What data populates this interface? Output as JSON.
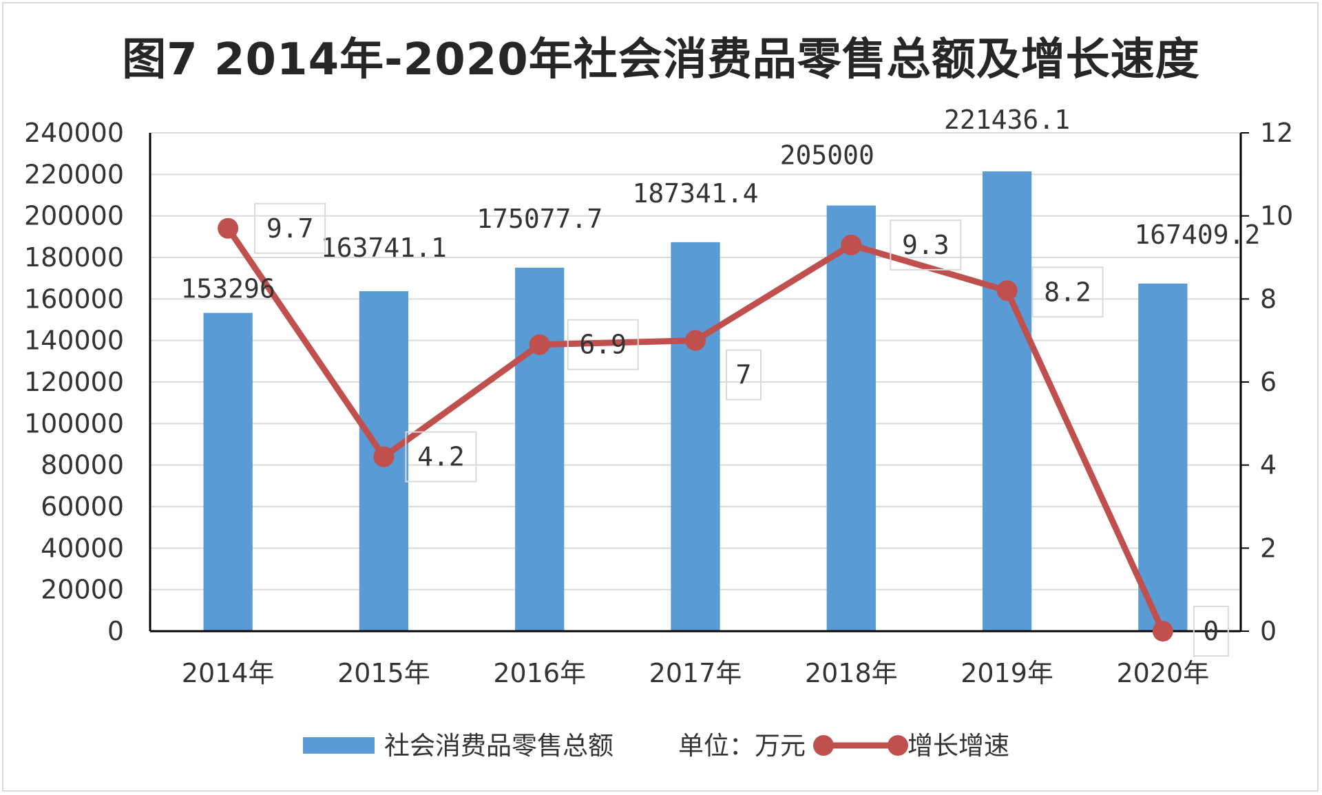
{
  "chart_data": {
    "type": "bar",
    "title": "图7  2014年-2020年社会消费品零售总额及增长速度",
    "categories": [
      "2014年",
      "2015年",
      "2016年",
      "2017年",
      "2018年",
      "2019年",
      "2020年"
    ],
    "series": [
      {
        "name": "社会消费品零售总额",
        "type": "bar",
        "axis": "left",
        "values": [
          153296,
          163741.1,
          175077.7,
          187341.4,
          205000,
          221436.1,
          167409.2
        ],
        "labels": [
          "153296",
          "163741.1",
          "175077.7",
          "187341.4",
          "205000",
          "221436.1",
          "167409.2"
        ],
        "color": "#5b9bd5"
      },
      {
        "name": "增长增速",
        "type": "line",
        "axis": "right",
        "values": [
          9.7,
          4.2,
          6.9,
          7,
          9.3,
          8.2,
          0
        ],
        "labels": [
          "9.7",
          "4.2",
          "6.9",
          "7",
          "9.3",
          "8.2",
          "0"
        ],
        "color": "#c0504d"
      }
    ],
    "y_left": {
      "range": [
        0,
        240000
      ],
      "ticks": [
        "0",
        "20000",
        "40000",
        "60000",
        "80000",
        "100000",
        "120000",
        "140000",
        "160000",
        "180000",
        "200000",
        "220000",
        "240000"
      ]
    },
    "y_right": {
      "range": [
        0,
        12
      ],
      "ticks": [
        "0",
        "2",
        "4",
        "6",
        "8",
        "10",
        "12"
      ]
    },
    "grid": true,
    "legend_position": "bottom",
    "legend_unit_text": "单位：万元"
  }
}
